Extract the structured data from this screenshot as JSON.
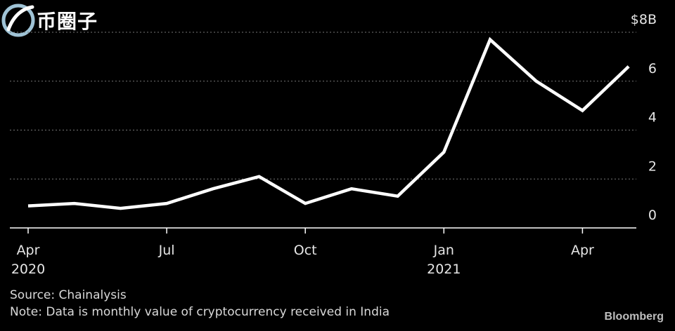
{
  "watermark": {
    "text": "币圈子"
  },
  "chart_data": {
    "type": "line",
    "x": [
      "2020-04",
      "2020-05",
      "2020-06",
      "2020-07",
      "2020-08",
      "2020-09",
      "2020-10",
      "2020-11",
      "2020-12",
      "2021-01",
      "2021-02",
      "2021-03",
      "2021-04",
      "2021-05"
    ],
    "series": [
      {
        "values": [
          0.9,
          1.0,
          0.8,
          1.0,
          1.6,
          2.1,
          1.0,
          1.6,
          1.3,
          3.1,
          7.7,
          6.0,
          4.8,
          6.6
        ]
      }
    ],
    "ylim": [
      0,
      8
    ],
    "yticks": [
      {
        "value": 0,
        "label": "0"
      },
      {
        "value": 2,
        "label": "2"
      },
      {
        "value": 4,
        "label": "4"
      },
      {
        "value": 6,
        "label": "6"
      },
      {
        "value": 8,
        "label": "$8B"
      }
    ],
    "xticks": [
      {
        "index": 0,
        "label": "Apr",
        "sublabel": "2020"
      },
      {
        "index": 3,
        "label": "Jul",
        "sublabel": ""
      },
      {
        "index": 6,
        "label": "Oct",
        "sublabel": ""
      },
      {
        "index": 9,
        "label": "Jan",
        "sublabel": "2021"
      },
      {
        "index": 12,
        "label": "Apr",
        "sublabel": ""
      }
    ],
    "line_color": "#ffffff",
    "background": "#000000",
    "grid": true
  },
  "footer": {
    "source": "Source: Chainalysis",
    "note": "Note: Data is monthly value of cryptocurrency received in India",
    "brand": "Bloomberg"
  }
}
